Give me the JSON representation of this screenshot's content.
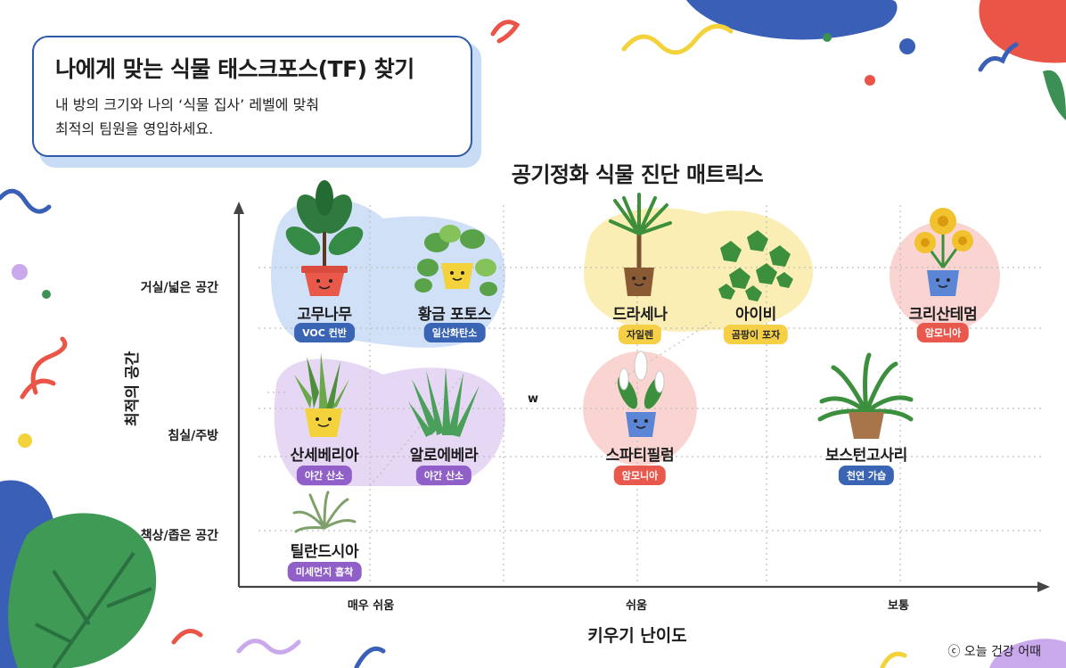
{
  "header": {
    "title": "나에게 맞는 식물 태스크포스(TF) 찾기",
    "subtitle_line1": "내 방의 크기와 나의 ‘식물 집사’ 레벨에 맞춰",
    "subtitle_line2": "최적의 팀원을 영입하세요."
  },
  "matrix": {
    "title": "공기정화 식물 진단 매트릭스",
    "y_axis_label": "최적의 공간",
    "x_axis_label": "키우기 난이도",
    "y_ticks": [
      "거실/넓은 공간",
      "침실/주방",
      "책상/좁은 공간"
    ],
    "x_ticks": [
      "매우 쉬움",
      "쉬움",
      "보통"
    ],
    "stray_mark": "w"
  },
  "plants": [
    {
      "name": "고무나무",
      "badge": "VOC 컨반",
      "color": "blue",
      "icon": "rubber-tree-icon"
    },
    {
      "name": "황금 포토스",
      "badge": "일산화탄소",
      "color": "blue",
      "icon": "pothos-icon"
    },
    {
      "name": "드라세나",
      "badge": "자일렌",
      "color": "yellow",
      "icon": "dracaena-icon"
    },
    {
      "name": "아이비",
      "badge": "곰팡이 포자",
      "color": "yellow",
      "icon": "ivy-icon"
    },
    {
      "name": "크리산테멈",
      "badge": "암모니아",
      "color": "red",
      "icon": "chrysanthemum-icon"
    },
    {
      "name": "산세베리아",
      "badge": "야간 산소",
      "color": "purple",
      "icon": "sansevieria-icon"
    },
    {
      "name": "알로에베라",
      "badge": "야간 산소",
      "color": "purple",
      "icon": "aloe-icon"
    },
    {
      "name": "스파티필럼",
      "badge": "암모니아",
      "color": "red",
      "icon": "peace-lily-icon"
    },
    {
      "name": "보스턴고사리",
      "badge": "천연 가습",
      "color": "blue",
      "icon": "boston-fern-icon"
    },
    {
      "name": "틸란드시아",
      "badge": "미세먼지 흡착",
      "color": "purple",
      "icon": "air-plant-icon"
    }
  ],
  "colors": {
    "blue_zone": "#cfe0f7",
    "purple_zone": "#e6d8f5",
    "yellow_zone": "#fbeeb4",
    "red_zone": "#f9d4d0"
  },
  "credit": "ⓒ 오늘 건강 어때"
}
